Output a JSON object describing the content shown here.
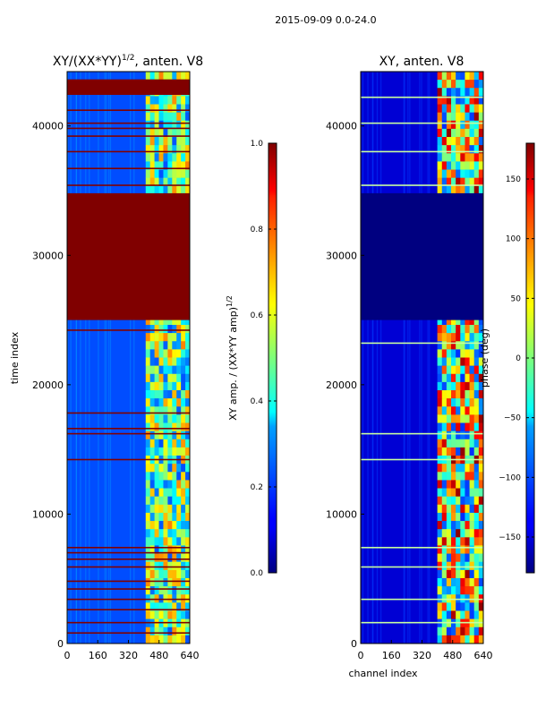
{
  "figure": {
    "suptitle": "2015-09-09 0.0-24.0"
  },
  "chart_data": [
    {
      "type": "heatmap",
      "title_prefix": "XY/(XX*YY)",
      "title_exponent": "1/2",
      "title_suffix": ", anten. V8",
      "xlabel": "",
      "ylabel": "time index",
      "xlim": [
        0,
        640
      ],
      "ylim": [
        0,
        44200
      ],
      "xticks": [
        0,
        160,
        320,
        480,
        640
      ],
      "yticks": [
        0,
        10000,
        20000,
        30000,
        40000
      ],
      "colormap": "jet",
      "colorbar": {
        "label_main": "XY amp. / (XX*YY amp)",
        "label_exponent": "1/2",
        "range": [
          0.0,
          1.0
        ],
        "ticks": [
          "0.0",
          "0.2",
          "0.4",
          "0.6",
          "0.8",
          "1.0"
        ],
        "tick_values": [
          0.0,
          0.2,
          0.4,
          0.6,
          0.8,
          1.0
        ]
      },
      "saturated_blocks_time": [
        [
          25000,
          34800
        ],
        [
          42400,
          43600
        ]
      ],
      "active_channel_range": [
        410,
        640
      ],
      "flag_rows_time": [
        800,
        1600,
        2600,
        3400,
        4200,
        4800,
        5900,
        6500,
        7000,
        7400,
        14200,
        16200,
        16600,
        17800,
        24200,
        35400,
        36700,
        38000,
        39200,
        39800,
        40200,
        41200
      ],
      "background_level": 0.2,
      "active_level_range": [
        0.2,
        0.75
      ]
    },
    {
      "type": "heatmap",
      "title": "XY, anten. V8",
      "xlabel": "channel index",
      "ylabel": "",
      "xlim": [
        0,
        640
      ],
      "ylim": [
        0,
        44200
      ],
      "xticks": [
        0,
        160,
        320,
        480,
        640
      ],
      "yticks": [
        0,
        10000,
        20000,
        30000,
        40000
      ],
      "colormap": "jet",
      "colorbar": {
        "label": "phase (deg)",
        "range": [
          -180,
          180
        ],
        "ticks": [
          "150",
          "100",
          "50",
          "0",
          "−50",
          "−100",
          "−150"
        ],
        "tick_values": [
          150,
          100,
          50,
          0,
          -50,
          -100,
          -150
        ]
      },
      "empty_block_time": [
        25000,
        34800
      ],
      "active_channel_range": [
        400,
        640
      ],
      "flag_rows_time": [
        1600,
        3400,
        5900,
        7400,
        14200,
        16200,
        23200,
        35400,
        38000,
        40200,
        42200
      ],
      "background_level": -150,
      "active_level_range": [
        -120,
        175
      ]
    }
  ]
}
